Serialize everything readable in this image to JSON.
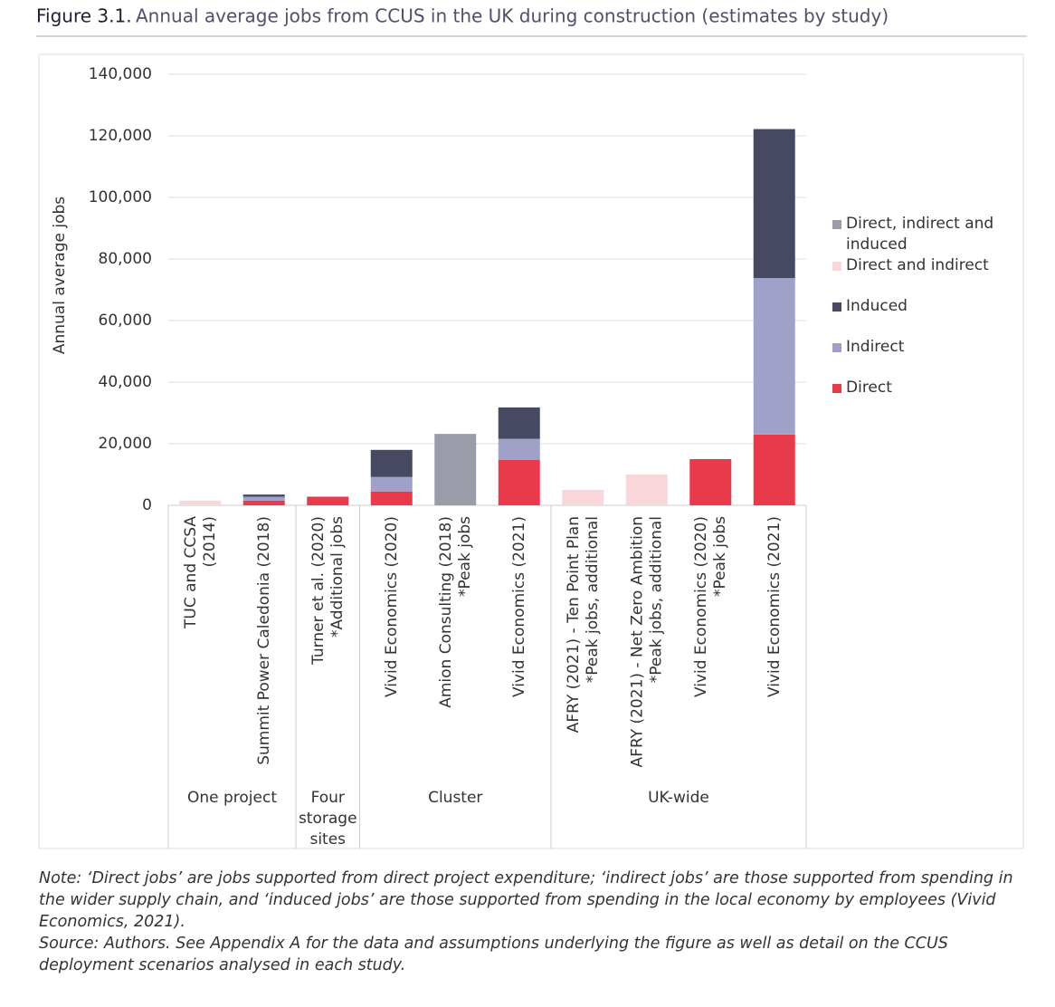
{
  "chart_data": {
    "type": "stacked_bar",
    "figure_label": "Figure 3.1.",
    "title": "Annual average jobs from CCUS in the UK during construction (estimates by study)",
    "ylabel": "Annual average jobs",
    "categories": [
      [
        "TUC and CCSA",
        "(2014)"
      ],
      [
        "Summit Power Caledonia (2018)"
      ],
      [
        "Turner et al. (2020)",
        "*Additional jobs"
      ],
      [
        "Vivid Economics (2020)"
      ],
      [
        "Amion Consulting (2018)",
        "*Peak jobs"
      ],
      [
        "Vivid Economics (2021)"
      ],
      [
        "AFRY (2021) - Ten Point Plan",
        "*Peak jobs, additional"
      ],
      [
        "AFRY (2021) - Net Zero Ambition",
        "*Peak jobs, additional"
      ],
      [
        "Vivid Economics (2020)",
        "*Peak jobs"
      ],
      [
        "Vivid Economics (2021)"
      ]
    ],
    "groups": [
      {
        "label": [
          "One project"
        ],
        "count": 2
      },
      {
        "label": [
          "Four",
          "storage",
          "sites"
        ],
        "count": 1
      },
      {
        "label": [
          "Cluster"
        ],
        "count": 3
      },
      {
        "label": [
          "UK-wide"
        ],
        "count": 4
      }
    ],
    "series": [
      {
        "name": "Direct, indirect and induced",
        "color": "#9b9ca9",
        "values": [
          null,
          null,
          null,
          null,
          23200,
          null,
          null,
          null,
          null,
          null
        ]
      },
      {
        "name": "Direct and indirect",
        "color": "#f9d6d9",
        "values": [
          1500,
          null,
          null,
          null,
          null,
          null,
          5000,
          10000,
          null,
          null
        ]
      },
      {
        "name": "Induced",
        "color": "#474862",
        "values": [
          null,
          700,
          null,
          8800,
          null,
          10200,
          null,
          null,
          null,
          48400
        ]
      },
      {
        "name": "Indirect",
        "color": "#a0a1c8",
        "values": [
          null,
          1300,
          null,
          4700,
          null,
          6800,
          null,
          null,
          null,
          50800
        ]
      },
      {
        "name": "Direct",
        "color": "#e83a4b",
        "values": [
          null,
          1500,
          2800,
          4500,
          null,
          14800,
          null,
          null,
          15000,
          23000
        ]
      }
    ],
    "ylim": [
      0,
      140000
    ],
    "yticks": [
      0,
      {
        "value": 20000,
        "label": "20,000"
      },
      {
        "value": 40000,
        "label": "40,000"
      },
      {
        "value": 60000,
        "label": "60,000"
      },
      {
        "value": 80000,
        "label": "80,000"
      },
      {
        "value": 100000,
        "label": "100,000"
      },
      {
        "value": 120000,
        "label": "120,000"
      },
      {
        "value": 140000,
        "label": "140,000"
      }
    ],
    "grid": true,
    "legend": "right",
    "note": "Note: ‘Direct jobs’ are jobs supported from direct project expenditure; ‘indirect jobs’ are those supported from spending in the wider supply chain, and ‘induced jobs’ are those supported from spending in the local economy by employees (Vivid Economics, 2021).",
    "source": "Source: Authors. See Appendix A for the data and assumptions underlying the figure as well as detail on the CCUS deployment scenarios analysed in each study."
  }
}
